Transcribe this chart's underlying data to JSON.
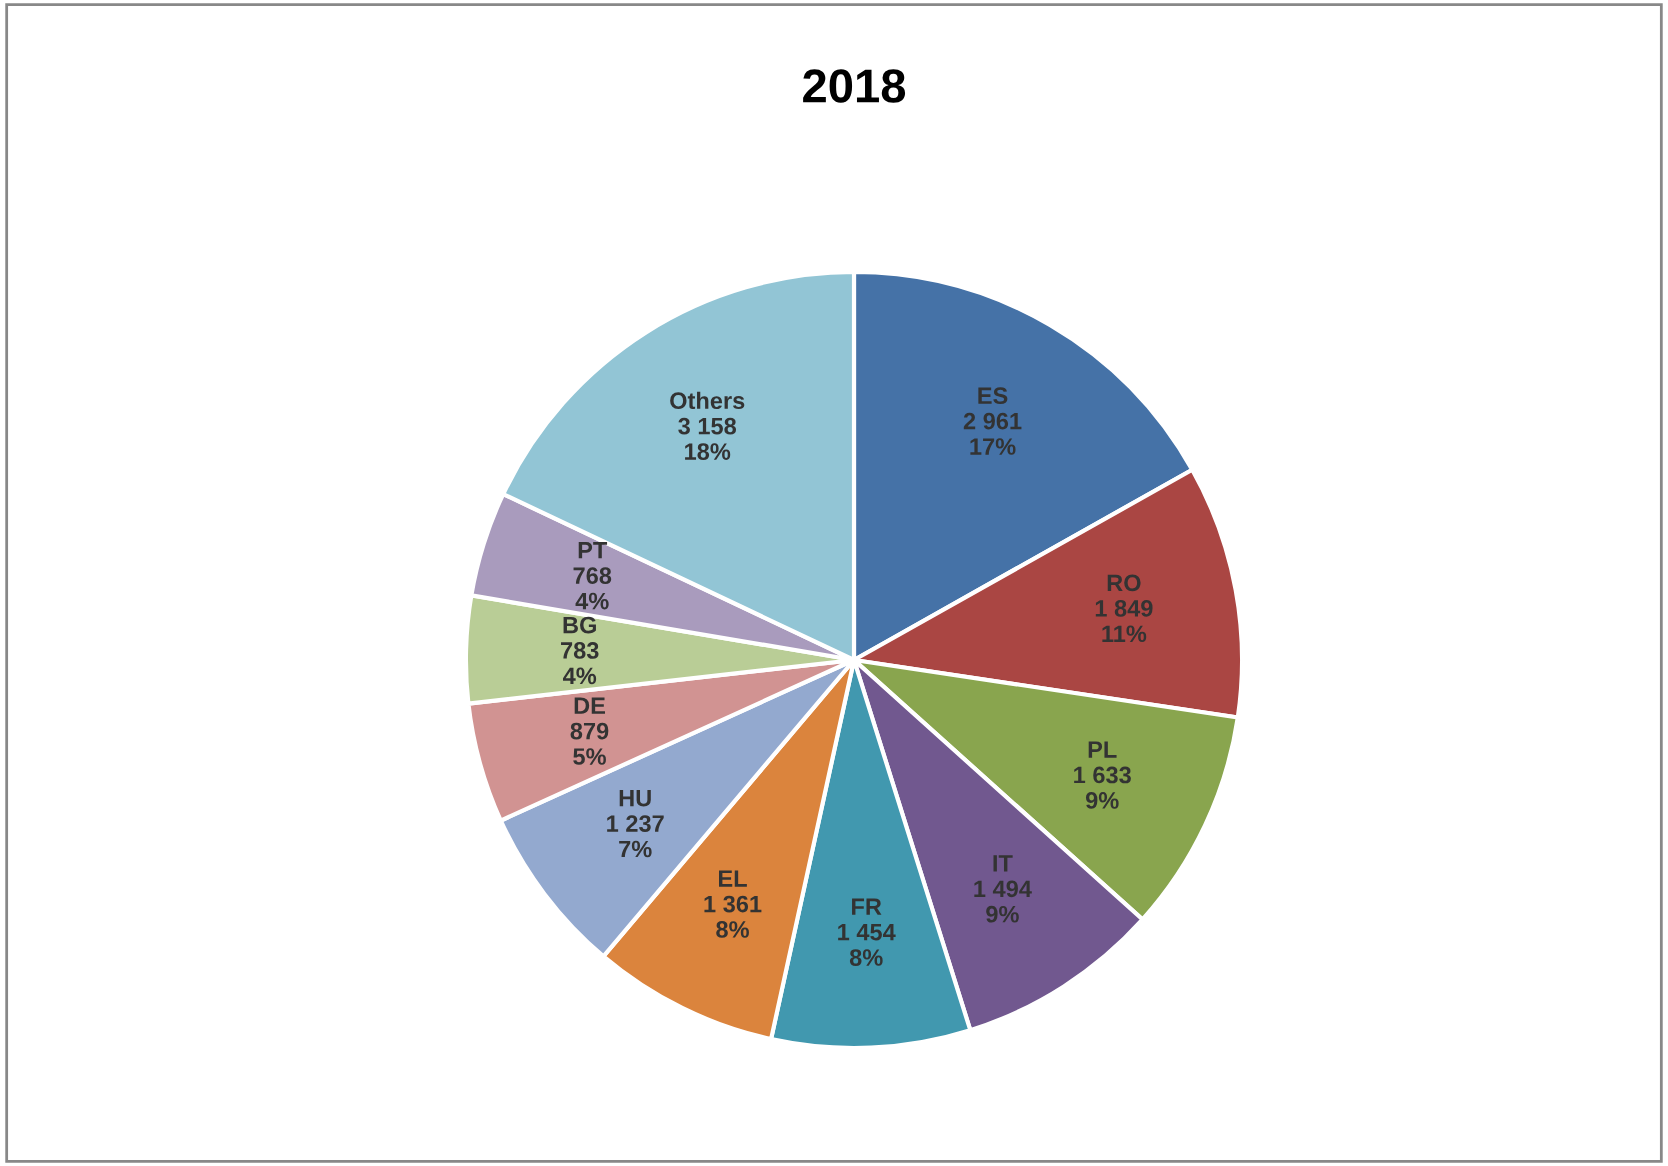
{
  "chart_data": {
    "type": "pie",
    "title": "2018",
    "categories": [
      "ES",
      "RO",
      "PL",
      "IT",
      "FR",
      "EL",
      "HU",
      "DE",
      "BG",
      "PT",
      "Others"
    ],
    "values": [
      2961,
      1849,
      1633,
      1494,
      1454,
      1361,
      1237,
      879,
      783,
      768,
      3158
    ],
    "value_labels": [
      "2 961\n17%",
      "1 849\n11%",
      "1 633\n9%",
      "1 494\n9%",
      "1 454\n8%",
      "1 361\n8%",
      "1 237\n7%",
      "879\n5%",
      "783\n4%",
      "768\n4%",
      "3 158\n18%"
    ],
    "colors": [
      "#4572a7",
      "#aa4643",
      "#89a54e",
      "#71588f",
      "#4198af",
      "#db843d",
      "#93a9cf",
      "#d19392",
      "#b9cd96",
      "#a99bbd",
      "#92c5d5"
    ],
    "legend": false
  }
}
